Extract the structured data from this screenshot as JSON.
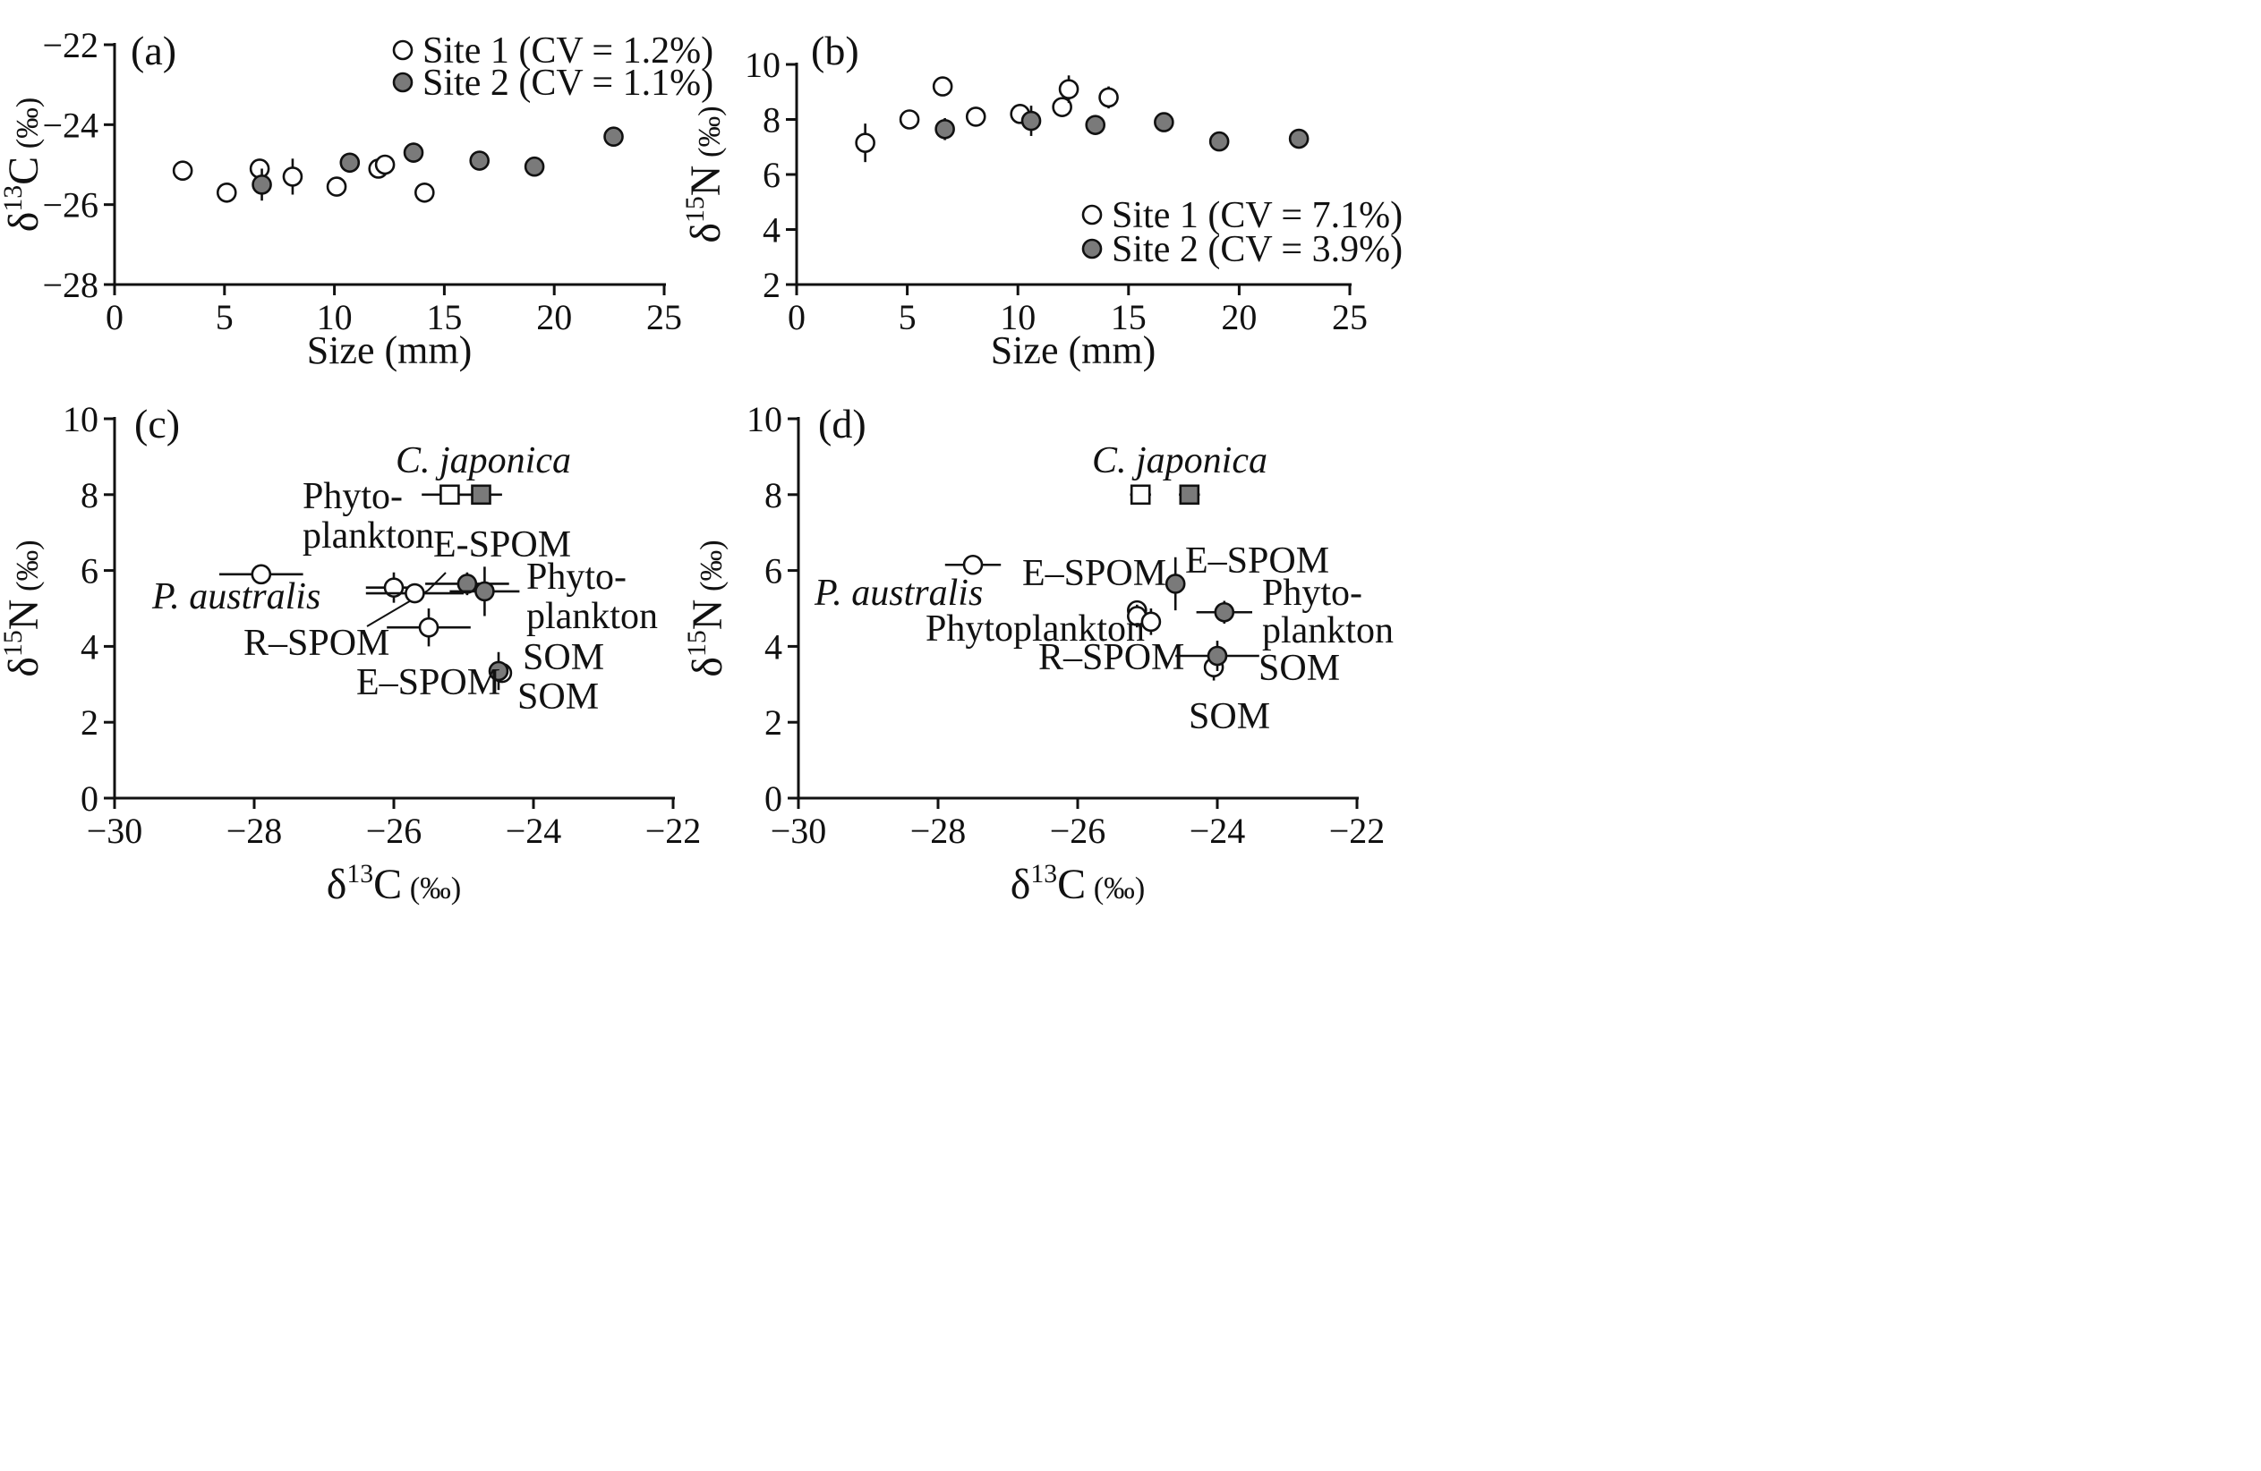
{
  "chart_data": [
    {
      "id": "a",
      "type": "scatter",
      "panel_label": "(a)",
      "xlabel": "Size (mm)",
      "ylabel": "δ13C (‰)",
      "xlim": [
        0,
        25
      ],
      "ylim": [
        -28,
        -22
      ],
      "xticks": [
        0,
        5,
        10,
        15,
        20,
        25
      ],
      "yticks": [
        -28,
        -26,
        -24,
        -22
      ],
      "xtick_labels": [
        "0",
        "5",
        "10",
        "15",
        "20",
        "25"
      ],
      "ytick_labels": [
        "−28",
        "−26",
        "−24",
        "−22"
      ],
      "legend": [
        {
          "label": "Site 1 (CV = 1.2%)",
          "fill": "#ffffff"
        },
        {
          "label": "Site 2 (CV = 1.1%)",
          "fill": "#7a7a7a"
        }
      ],
      "series": [
        {
          "name": "Site 1",
          "fill": "#ffffff",
          "points": [
            {
              "x": 3.1,
              "y": -25.15,
              "ey": 0
            },
            {
              "x": 5.1,
              "y": -25.7,
              "ey": 0.05
            },
            {
              "x": 6.6,
              "y": -25.1,
              "ey": 0.1
            },
            {
              "x": 8.1,
              "y": -25.3,
              "ey": 0.45
            },
            {
              "x": 10.1,
              "y": -25.55,
              "ey": 0
            },
            {
              "x": 12.0,
              "y": -25.1,
              "ey": 0.05
            },
            {
              "x": 12.3,
              "y": -25.0,
              "ey": 0
            },
            {
              "x": 14.1,
              "y": -25.7,
              "ey": 0.2
            }
          ]
        },
        {
          "name": "Site 2",
          "fill": "#7a7a7a",
          "points": [
            {
              "x": 6.7,
              "y": -25.5,
              "ey": 0.4
            },
            {
              "x": 10.7,
              "y": -24.95,
              "ey": 0.2
            },
            {
              "x": 13.6,
              "y": -24.7,
              "ey": 0.25
            },
            {
              "x": 16.6,
              "y": -24.9,
              "ey": 0
            },
            {
              "x": 19.1,
              "y": -25.05,
              "ey": 0
            },
            {
              "x": 22.7,
              "y": -24.3,
              "ey": 0
            }
          ]
        }
      ]
    },
    {
      "id": "b",
      "type": "scatter",
      "panel_label": "(b)",
      "xlabel": "Size (mm)",
      "ylabel": "δ15N (‰)",
      "xlim": [
        0,
        25
      ],
      "ylim": [
        2,
        10
      ],
      "xticks": [
        0,
        5,
        10,
        15,
        20,
        25
      ],
      "yticks": [
        2,
        4,
        6,
        8,
        10
      ],
      "xtick_labels": [
        "0",
        "5",
        "10",
        "15",
        "20",
        "25"
      ],
      "ytick_labels": [
        "2",
        "4",
        "6",
        "8",
        "10"
      ],
      "legend": [
        {
          "label": "Site 1 (CV = 7.1%)",
          "fill": "#ffffff"
        },
        {
          "label": "Site 2 (CV = 3.9%)",
          "fill": "#7a7a7a"
        }
      ],
      "series": [
        {
          "name": "Site 1",
          "fill": "#ffffff",
          "points": [
            {
              "x": 3.1,
              "y": 7.15,
              "ey": 0.7
            },
            {
              "x": 5.1,
              "y": 8.0,
              "ey": 0
            },
            {
              "x": 6.6,
              "y": 9.2,
              "ey": 0
            },
            {
              "x": 8.1,
              "y": 8.1,
              "ey": 0
            },
            {
              "x": 10.1,
              "y": 8.2,
              "ey": 0
            },
            {
              "x": 12.0,
              "y": 8.45,
              "ey": 0
            },
            {
              "x": 12.3,
              "y": 9.1,
              "ey": 0.5
            },
            {
              "x": 14.1,
              "y": 8.8,
              "ey": 0.4
            }
          ]
        },
        {
          "name": "Site 2",
          "fill": "#7a7a7a",
          "points": [
            {
              "x": 6.7,
              "y": 7.65,
              "ey": 0.4
            },
            {
              "x": 10.6,
              "y": 7.95,
              "ey": 0.55
            },
            {
              "x": 13.5,
              "y": 7.8,
              "ey": 0
            },
            {
              "x": 16.6,
              "y": 7.9,
              "ey": 0
            },
            {
              "x": 19.1,
              "y": 7.2,
              "ey": 0
            },
            {
              "x": 22.7,
              "y": 7.3,
              "ey": 0
            }
          ]
        }
      ]
    },
    {
      "id": "c",
      "type": "scatter",
      "panel_label": "(c)",
      "xlabel": "δ13C (‰)",
      "ylabel": "δ15N (‰)",
      "xlim": [
        -30,
        -22
      ],
      "ylim": [
        0,
        10
      ],
      "xticks": [
        -30,
        -28,
        -26,
        -24,
        -22
      ],
      "yticks": [
        0,
        2,
        4,
        6,
        8,
        10
      ],
      "xtick_labels": [
        "−30",
        "−28",
        "−26",
        "−24",
        "−22"
      ],
      "ytick_labels": [
        "0",
        "2",
        "4",
        "6",
        "8",
        "10"
      ],
      "points": [
        {
          "name": "C. japonica site 1",
          "shape": "square",
          "fill": "#ffffff",
          "x": -25.2,
          "y": 8.0,
          "ex": 0.4,
          "ey": 0
        },
        {
          "name": "C. japonica site 2",
          "shape": "square",
          "fill": "#7a7a7a",
          "x": -24.75,
          "y": 8.0,
          "ex": 0.3,
          "ey": 0
        },
        {
          "name": "P. australis",
          "shape": "circle",
          "fill": "#ffffff",
          "x": -27.9,
          "y": 5.9,
          "ex": 0.6,
          "ey": 0
        },
        {
          "name": "Phytoplankton site 1",
          "shape": "circle",
          "fill": "#ffffff",
          "x": -26.0,
          "y": 5.55,
          "ex": 0.4,
          "ey": 0.4
        },
        {
          "name": "R-SPOM",
          "shape": "circle",
          "fill": "#ffffff",
          "x": -25.7,
          "y": 5.4,
          "ex": 0.7,
          "ey": 0.1
        },
        {
          "name": "E-SPOM site 1",
          "shape": "circle",
          "fill": "#ffffff",
          "x": -25.5,
          "y": 4.5,
          "ex": 0.6,
          "ey": 0.5
        },
        {
          "name": "E-SPOM site 2",
          "shape": "circle",
          "fill": "#7a7a7a",
          "x": -24.95,
          "y": 5.65,
          "ex": 0.6,
          "ey": 0.3
        },
        {
          "name": "Phytoplankton site 2",
          "shape": "circle",
          "fill": "#7a7a7a",
          "x": -24.7,
          "y": 5.45,
          "ex": 0.5,
          "ey": 0.65
        },
        {
          "name": "SOM site 1",
          "shape": "circle",
          "fill": "#ffffff",
          "x": -24.45,
          "y": 3.3,
          "ex": 0,
          "ey": 0.2
        },
        {
          "name": "SOM site 2",
          "shape": "circle",
          "fill": "#7a7a7a",
          "x": -24.5,
          "y": 3.35,
          "ex": 0,
          "ey": 0.5
        }
      ],
      "annotations": [
        {
          "text": "C. japonica",
          "italic": true
        },
        {
          "text": "Phyto-"
        },
        {
          "text": "plankton"
        },
        {
          "text": "E-SPOM"
        },
        {
          "text": "Phyto-"
        },
        {
          "text": "plankton"
        },
        {
          "text": "P. australis",
          "italic": true
        },
        {
          "text": "R–SPOM"
        },
        {
          "text": "E–SPOM"
        },
        {
          "text": "SOM"
        },
        {
          "text": "SOM"
        }
      ]
    },
    {
      "id": "d",
      "type": "scatter",
      "panel_label": "(d)",
      "xlabel": "δ13C (‰)",
      "ylabel": "δ15N (‰)",
      "xlim": [
        -30,
        -22
      ],
      "ylim": [
        0,
        10
      ],
      "xticks": [
        -30,
        -28,
        -26,
        -24,
        -22
      ],
      "yticks": [
        0,
        2,
        4,
        6,
        8,
        10
      ],
      "xtick_labels": [
        "−30",
        "−28",
        "−26",
        "−24",
        "−22"
      ],
      "ytick_labels": [
        "0",
        "2",
        "4",
        "6",
        "8",
        "10"
      ],
      "points": [
        {
          "name": "C. japonica site 1",
          "shape": "square",
          "fill": "#ffffff",
          "x": -25.1,
          "y": 8.0,
          "ex": 0.15,
          "ey": 0
        },
        {
          "name": "C. japonica site 2",
          "shape": "square",
          "fill": "#7a7a7a",
          "x": -24.4,
          "y": 8.0,
          "ex": 0.15,
          "ey": 0
        },
        {
          "name": "P. australis",
          "shape": "circle",
          "fill": "#ffffff",
          "x": -27.5,
          "y": 6.15,
          "ex": 0.4,
          "ey": 0.2
        },
        {
          "name": "E-SPOM site 1",
          "shape": "circle",
          "fill": "#ffffff",
          "x": -25.15,
          "y": 4.95,
          "ex": 0,
          "ey": 0.25
        },
        {
          "name": "Phytoplankton site 1",
          "shape": "circle",
          "fill": "#ffffff",
          "x": -25.15,
          "y": 4.8,
          "ex": 0,
          "ey": 0.3
        },
        {
          "name": "R-SPOM",
          "shape": "circle",
          "fill": "#ffffff",
          "x": -24.95,
          "y": 4.65,
          "ex": 0,
          "ey": 0.35
        },
        {
          "name": "E-SPOM site 2",
          "shape": "circle",
          "fill": "#7a7a7a",
          "x": -24.6,
          "y": 5.65,
          "ex": 0,
          "ey": 0.7
        },
        {
          "name": "Phytoplankton site 2",
          "shape": "circle",
          "fill": "#7a7a7a",
          "x": -23.9,
          "y": 4.9,
          "ex": 0.4,
          "ey": 0.3
        },
        {
          "name": "SOM site 1",
          "shape": "circle",
          "fill": "#ffffff",
          "x": -24.05,
          "y": 3.45,
          "ex": 0,
          "ey": 0.35
        },
        {
          "name": "SOM site 2",
          "shape": "circle",
          "fill": "#7a7a7a",
          "x": -24.0,
          "y": 3.75,
          "ex": 0.6,
          "ey": 0.4
        }
      ],
      "annotations": [
        {
          "text": "C. japonica",
          "italic": true
        },
        {
          "text": "P. australis",
          "italic": true
        },
        {
          "text": "E–SPOM"
        },
        {
          "text": "E–SPOM"
        },
        {
          "text": "Phytoplankton"
        },
        {
          "text": "Phyto-"
        },
        {
          "text": "plankton"
        },
        {
          "text": "R–SPOM"
        },
        {
          "text": "SOM"
        },
        {
          "text": "SOM"
        }
      ]
    }
  ]
}
